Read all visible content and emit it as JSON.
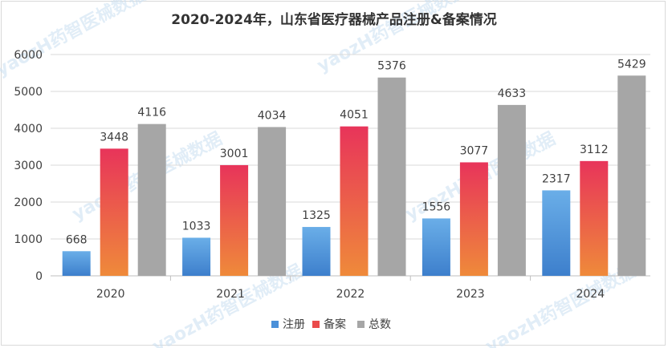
{
  "watermark": "yaozH药智医械数据",
  "chart_data": {
    "type": "bar",
    "title": "2020-2024年，山东省医疗器械产品注册&备案情况",
    "categories": [
      "2020",
      "2021",
      "2022",
      "2023",
      "2024"
    ],
    "series": [
      {
        "name": "注册",
        "values": [
          668,
          1033,
          1325,
          1556,
          2317
        ],
        "color_top": "#6aaee8",
        "color_bottom": "#3d7fcc"
      },
      {
        "name": "备案",
        "values": [
          3448,
          3001,
          4051,
          3077,
          3112
        ],
        "color_top": "#e8345a",
        "color_bottom": "#ef8a3a"
      },
      {
        "name": "总数",
        "values": [
          4116,
          4034,
          5376,
          4633,
          5429
        ],
        "color_top": "#a6a6a6",
        "color_bottom": "#a6a6a6"
      }
    ],
    "ylim": [
      0,
      6000
    ],
    "yticks": [
      0,
      1000,
      2000,
      3000,
      4000,
      5000,
      6000
    ],
    "grid": true,
    "legend_position": "bottom"
  }
}
